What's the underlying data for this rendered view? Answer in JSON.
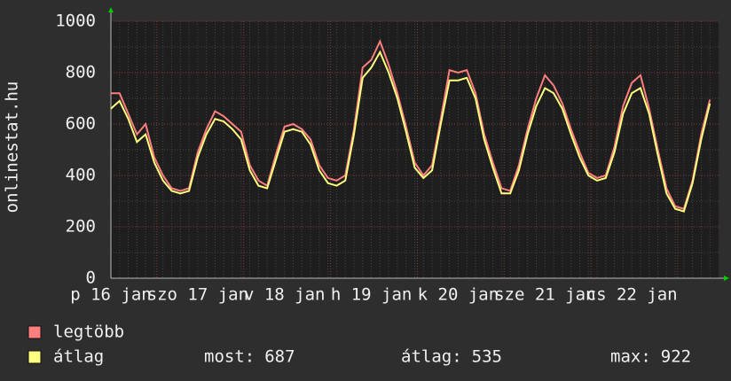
{
  "chart_data": {
    "type": "line",
    "y_label": "onlinestat.hu",
    "categories": [
      "p 16 jan",
      null,
      null,
      null,
      null,
      null,
      null,
      null,
      null,
      null,
      "szo 17 jan",
      null,
      null,
      null,
      null,
      null,
      null,
      null,
      null,
      null,
      "v 18 jan",
      null,
      null,
      null,
      null,
      null,
      null,
      null,
      null,
      null,
      "h 19 jan",
      null,
      null,
      null,
      null,
      null,
      null,
      null,
      null,
      null,
      "k 20 jan",
      null,
      null,
      null,
      null,
      null,
      null,
      null,
      null,
      null,
      "sze 21 jan",
      null,
      null,
      null,
      null,
      null,
      null,
      null,
      null,
      null,
      "cs 22 jan",
      null,
      null,
      null,
      null,
      null,
      null,
      null,
      null,
      null
    ],
    "series": [
      {
        "name": "legtöbb",
        "color": "#ff7f7f",
        "values": [
          720,
          720,
          640,
          560,
          600,
          470,
          400,
          350,
          340,
          350,
          490,
          580,
          650,
          630,
          600,
          570,
          440,
          380,
          360,
          480,
          590,
          600,
          580,
          540,
          440,
          390,
          380,
          400,
          580,
          820,
          850,
          922,
          830,
          720,
          590,
          450,
          400,
          440,
          620,
          810,
          800,
          810,
          720,
          560,
          450,
          350,
          340,
          440,
          580,
          700,
          790,
          750,
          680,
          580,
          490,
          410,
          390,
          400,
          510,
          670,
          760,
          790,
          660,
          500,
          350,
          280,
          270,
          380,
          560,
          695
        ]
      },
      {
        "name": "átlag",
        "color": "#ffff7f",
        "values": [
          660,
          690,
          620,
          530,
          560,
          450,
          380,
          340,
          330,
          340,
          470,
          560,
          620,
          610,
          580,
          540,
          420,
          360,
          350,
          460,
          570,
          580,
          570,
          520,
          420,
          370,
          360,
          380,
          560,
          780,
          820,
          880,
          800,
          700,
          570,
          430,
          390,
          420,
          600,
          770,
          770,
          780,
          700,
          540,
          430,
          330,
          330,
          420,
          560,
          670,
          740,
          720,
          660,
          560,
          470,
          400,
          380,
          390,
          490,
          640,
          720,
          740,
          640,
          480,
          330,
          270,
          260,
          370,
          540,
          680
        ]
      }
    ],
    "stats": [
      {
        "label": "most:",
        "value": 687
      },
      {
        "label": "átlag:",
        "value": 535
      },
      {
        "label": "max:",
        "value": 922
      }
    ],
    "ylim": [
      0,
      1000
    ],
    "yticks": [
      0,
      200,
      400,
      600,
      800,
      1000
    ],
    "grid": true
  }
}
